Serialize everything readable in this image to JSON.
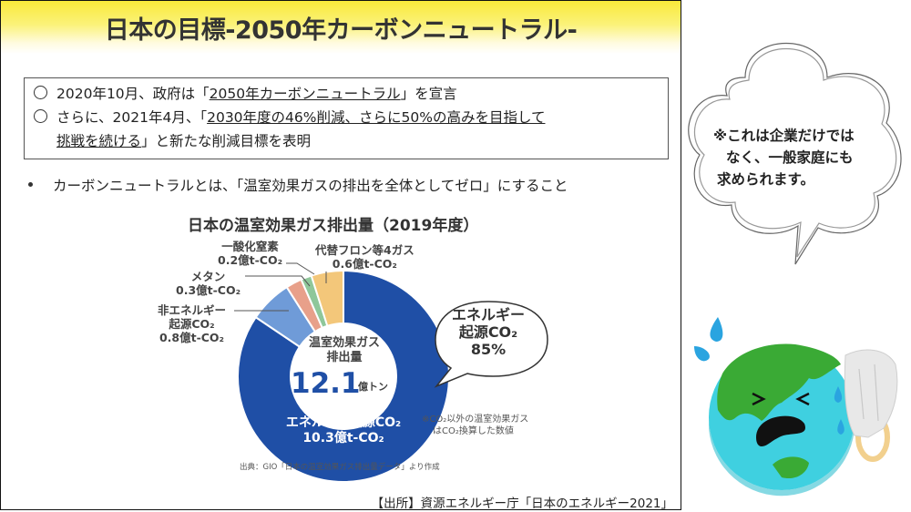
{
  "slide": {
    "title": "日本の目標-2050年カーボンニュートラル-",
    "points": [
      {
        "marker": "circle",
        "prefix": "2020年10月、政府は「",
        "underlined": "2050年カーボンニュートラル",
        "suffix": "」を宣言"
      },
      {
        "marker": "circle",
        "prefix": "さらに、2021年4月、「",
        "underlined": "2030年度の46%削減、さらに50%の高みを目指して",
        "line2_underlined": "挑戦を続ける",
        "line2_suffix": "」と新たな削減目標を表明"
      }
    ],
    "bullet": "カーボンニュートラルとは、「温室効果ガスの排出を全体としてゼロ」にすること",
    "source": "【出所】資源エネルギー庁「日本のエネルギー2021」"
  },
  "chart": {
    "title": "日本の温室効果ガス排出量（2019年度）",
    "center_label_line1": "温室効果ガス",
    "center_label_line2": "排出量",
    "center_value": "12.1",
    "center_unit": "億トン",
    "labels": {
      "energy_co2_line1": "エネルギー起源CO₂",
      "energy_co2_line2": "10.3億t-CO₂",
      "non_energy_line1": "非エネルギー",
      "non_energy_line2": "起源CO₂",
      "non_energy_line3": "0.8億t-CO₂",
      "methane_line1": "メタン",
      "methane_line2": "0.3億t-CO₂",
      "n2o_line1": "一酸化窒素",
      "n2o_line2": "0.2億t-CO₂",
      "fluoro_line1": "代替フロン等4ガス",
      "fluoro_line2": "0.6億t-CO₂"
    },
    "callout_line1": "エネルギー",
    "callout_line2": "起源CO₂",
    "callout_line3": "85%",
    "note_line1": "※CO₂以外の温室効果ガス",
    "note_line2": "はCO₂換算した数値",
    "source": "出典：GIO「日本の温室効果ガス排出量データ」より作成"
  },
  "chart_data": {
    "type": "pie",
    "variant": "donut",
    "title": "日本の温室効果ガス排出量（2019年度）",
    "unit": "億t-CO₂",
    "total_label": "12.1億トン",
    "categories": [
      "エネルギー起源CO₂",
      "非エネルギー起源CO₂",
      "メタン",
      "一酸化窒素",
      "代替フロン等4ガス"
    ],
    "values": [
      10.3,
      0.8,
      0.3,
      0.2,
      0.6
    ],
    "colors": [
      "#1f4fa6",
      "#6f9bd8",
      "#e8a08a",
      "#8fc79a",
      "#f3c77a"
    ],
    "annotations": [
      "エネルギー起源CO₂ 85%",
      "※CO₂以外の温室効果ガスはCO₂換算した数値"
    ],
    "legend_position": "callout labels"
  },
  "side": {
    "bubble_line1": "※これは企業だけでは",
    "bubble_line2": "なく、一般家庭にも",
    "bubble_line3": "求められます。"
  },
  "colors": {
    "title_band": "#f9e93a",
    "energy_co2": "#1f4fa6",
    "earth_land": "#3aaa35",
    "earth_sea": "#3fd0e0"
  }
}
